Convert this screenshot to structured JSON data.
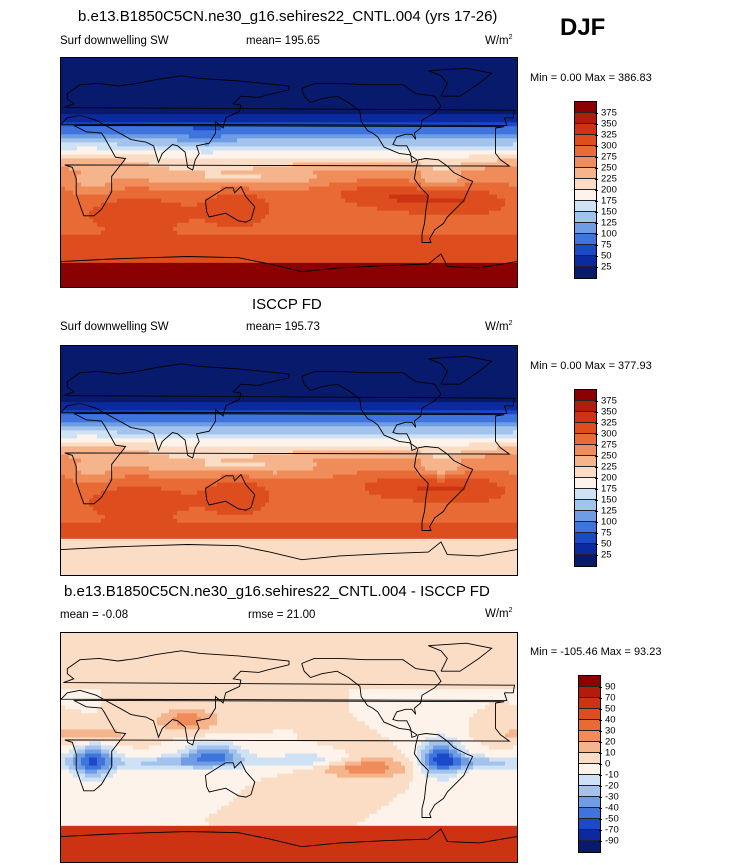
{
  "season": "DJF",
  "units_base": "W/m",
  "units_exp": "2",
  "panels": [
    {
      "title": "b.e13.B1850C5CN.ne30_g16.sehires22_CNTL.004 (yrs 17-26)",
      "variable": "Surf downwelling SW",
      "mean": "mean= 195.65",
      "rmse": "",
      "minmax": "Min =   0.00 Max = 386.83"
    },
    {
      "title": "ISCCP FD",
      "variable": "Surf downwelling SW",
      "mean": "mean= 195.73",
      "rmse": "",
      "minmax": "Min =   0.00 Max = 377.93"
    },
    {
      "title": "b.e13.B1850C5CN.ne30_g16.sehires22_CNTL.004 - ISCCP FD",
      "variable": "",
      "mean": "mean =  -0.08",
      "rmse": "rmse =  21.00",
      "minmax": "Min = -105.46 Max =  93.23"
    }
  ],
  "chart_data": [
    {
      "type": "heatmap",
      "title": "b.e13.B1850C5CN.ne30_g16.sehires22_CNTL.004 (yrs 17-26)",
      "variable": "Surf downwelling SW",
      "units": "W/m2",
      "season": "DJF",
      "mean": 195.65,
      "min": 0.0,
      "max": 386.83,
      "levels": [
        375,
        350,
        325,
        300,
        275,
        250,
        225,
        200,
        175,
        150,
        125,
        100,
        75,
        50,
        25
      ],
      "colors": [
        "#8b0000",
        "#b31b0b",
        "#cc3312",
        "#dd4d1e",
        "#e86a34",
        "#f08c5a",
        "#f6b48c",
        "#fbdcc4",
        "#fdf3ea",
        "#cfe1f4",
        "#a3c3ec",
        "#6f9de4",
        "#3f74dc",
        "#1b49c8",
        "#0c2aa0",
        "#081a6c"
      ]
    },
    {
      "type": "heatmap",
      "title": "ISCCP FD",
      "variable": "Surf downwelling SW",
      "units": "W/m2",
      "season": "DJF",
      "mean": 195.73,
      "min": 0.0,
      "max": 377.93,
      "levels": [
        375,
        350,
        325,
        300,
        275,
        250,
        225,
        200,
        175,
        150,
        125,
        100,
        75,
        50,
        25
      ],
      "colors": [
        "#8b0000",
        "#b31b0b",
        "#cc3312",
        "#dd4d1e",
        "#e86a34",
        "#f08c5a",
        "#f6b48c",
        "#fbdcc4",
        "#fdf3ea",
        "#cfe1f4",
        "#a3c3ec",
        "#6f9de4",
        "#3f74dc",
        "#1b49c8",
        "#0c2aa0",
        "#081a6c"
      ]
    },
    {
      "type": "heatmap",
      "title": "b.e13.B1850C5CN.ne30_g16.sehires22_CNTL.004 - ISCCP FD",
      "variable": "",
      "units": "W/m2",
      "season": "DJF",
      "mean": -0.08,
      "rmse": 21.0,
      "min": -105.46,
      "max": 93.23,
      "levels": [
        90,
        70,
        50,
        40,
        30,
        20,
        10,
        0,
        -10,
        -20,
        -30,
        -40,
        -50,
        -70,
        -90
      ],
      "colors": [
        "#8b0000",
        "#b31b0b",
        "#cc3312",
        "#dd4d1e",
        "#e86a34",
        "#f08c5a",
        "#f6b48c",
        "#fbdcc4",
        "#fdf3ea",
        "#cfe1f4",
        "#a3c3ec",
        "#6f9de4",
        "#3f74dc",
        "#1b49c8",
        "#0c2aa0",
        "#081a6c"
      ]
    }
  ]
}
